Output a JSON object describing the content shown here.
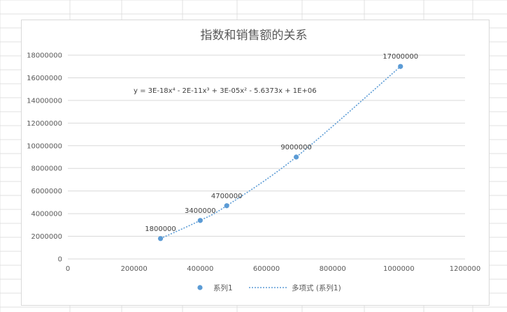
{
  "colors": {
    "series": "#5b9bd5",
    "gridline": "#d9d9d9",
    "axis_text": "#595959",
    "title_text": "#595959",
    "sheet_grid": "#e1e1e1"
  },
  "chart_data": {
    "type": "scatter",
    "title": "指数和销售额的关系",
    "xlabel": "",
    "ylabel": "",
    "xlim": [
      0,
      1200000
    ],
    "ylim": [
      0,
      18000000
    ],
    "x_ticks": [
      0,
      200000,
      400000,
      600000,
      800000,
      1000000,
      1200000
    ],
    "y_ticks": [
      0,
      2000000,
      4000000,
      6000000,
      8000000,
      10000000,
      12000000,
      14000000,
      16000000,
      18000000
    ],
    "grid": true,
    "series": [
      {
        "name": "系列1",
        "points": [
          {
            "x": 280000,
            "y": 1800000,
            "label": "1800000"
          },
          {
            "x": 400000,
            "y": 3400000,
            "label": "3400000"
          },
          {
            "x": 480000,
            "y": 4700000,
            "label": "4700000"
          },
          {
            "x": 690000,
            "y": 9000000,
            "label": "9000000"
          },
          {
            "x": 1005000,
            "y": 17000000,
            "label": "17000000"
          }
        ]
      }
    ],
    "trendline": {
      "name": "多项式 (系列1)",
      "type": "polynomial",
      "order": 4,
      "equation": "y = 3E-18x⁴ - 2E-11x³ + 3E-05x² - 5.6373x + 1E+06"
    },
    "legend": {
      "position": "bottom",
      "marker_label": "系列1",
      "trend_label": "多项式 (系列1)"
    }
  }
}
